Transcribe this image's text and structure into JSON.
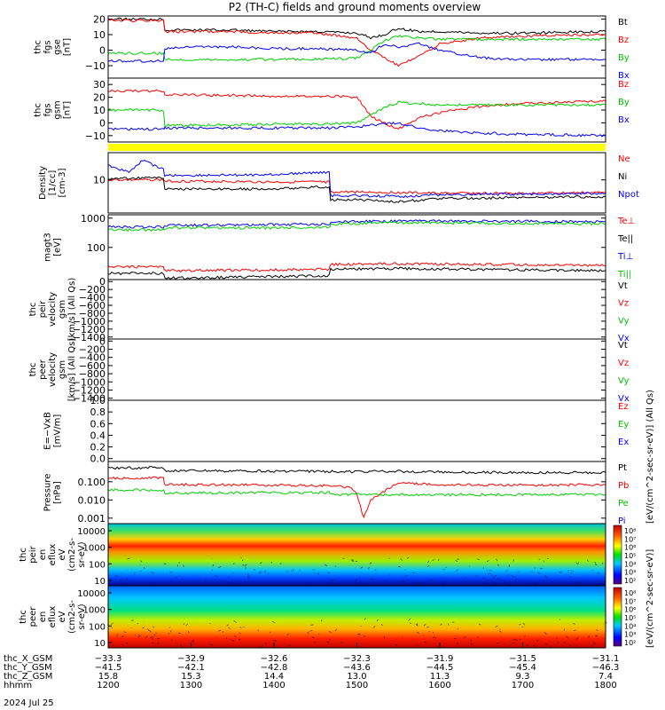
{
  "title": "P2 (TH-C) fields and ground moments overview",
  "chart_data": [
    {
      "id": "fgs_gse",
      "type": "line",
      "ylabel": [
        "thc",
        "fgs",
        "gse",
        "[nT]"
      ],
      "ylim": [
        -18,
        22
      ],
      "yticks": [
        "20",
        "10",
        "0",
        "−10"
      ],
      "ytick_values": [
        20,
        10,
        0,
        -10
      ],
      "legend": [
        "Bt",
        "Bz",
        "By",
        "Bx"
      ],
      "series": [
        {
          "name": "Bt",
          "color": "#000000",
          "times": [
            1200,
            1240,
            1241,
            1300,
            1330,
            1400,
            1430,
            1500,
            1510,
            1520,
            1530,
            1545,
            1600,
            1630,
            1700,
            1800
          ],
          "values": [
            20,
            20,
            13,
            13,
            13,
            12,
            12,
            11,
            8,
            10,
            14,
            12,
            12,
            11,
            11,
            12
          ]
        },
        {
          "name": "Bz",
          "color": "#ff0000",
          "times": [
            1200,
            1240,
            1241,
            1300,
            1330,
            1400,
            1430,
            1500,
            1510,
            1520,
            1530,
            1545,
            1600,
            1630,
            1700,
            1800
          ],
          "values": [
            19,
            19,
            12,
            12,
            12,
            11,
            11,
            8,
            0,
            -5,
            -10,
            -4,
            4,
            8,
            9,
            10
          ]
        },
        {
          "name": "By",
          "color": "#00d000",
          "times": [
            1200,
            1240,
            1241,
            1300,
            1330,
            1400,
            1430,
            1500,
            1510,
            1520,
            1530,
            1545,
            1600,
            1630,
            1700,
            1800
          ],
          "values": [
            -2,
            -2,
            -6,
            -6,
            -6,
            -6,
            -6,
            -5,
            0,
            6,
            9,
            8,
            7,
            7,
            7,
            7
          ]
        },
        {
          "name": "Bx",
          "color": "#0000ff",
          "times": [
            1200,
            1240,
            1241,
            1300,
            1330,
            1400,
            1430,
            1500,
            1510,
            1520,
            1530,
            1545,
            1600,
            1630,
            1700,
            1800
          ],
          "values": [
            -7,
            -7,
            1,
            2,
            2,
            1,
            1,
            0,
            -2,
            4,
            2,
            4,
            0,
            -5,
            -6,
            -6
          ]
        }
      ]
    },
    {
      "id": "fgs_gsm",
      "type": "line",
      "ylabel": [
        "thc",
        "fgs",
        "gsm",
        "[nT]"
      ],
      "ylim": [
        -15,
        35
      ],
      "yticks": [
        "30",
        "20",
        "10",
        "0",
        "−10"
      ],
      "ytick_values": [
        30,
        20,
        10,
        0,
        -10
      ],
      "legend": [
        "Bz",
        "By",
        "Bx"
      ],
      "series": [
        {
          "name": "Bz",
          "color": "#ff0000",
          "times": [
            1200,
            1240,
            1241,
            1300,
            1400,
            1440,
            1500,
            1510,
            1520,
            1530,
            1545,
            1600,
            1630,
            1700,
            1800
          ],
          "values": [
            25,
            25,
            22,
            22,
            21,
            21,
            20,
            5,
            0,
            -5,
            4,
            8,
            13,
            15,
            17
          ]
        },
        {
          "name": "By",
          "color": "#00d000",
          "times": [
            1200,
            1240,
            1241,
            1300,
            1400,
            1440,
            1500,
            1510,
            1520,
            1530,
            1545,
            1600,
            1630,
            1700,
            1800
          ],
          "values": [
            10,
            10,
            -2,
            -2,
            -1,
            -1,
            0,
            6,
            12,
            16,
            15,
            14,
            14,
            14,
            14
          ]
        },
        {
          "name": "Bx",
          "color": "#0000ff",
          "times": [
            1200,
            1240,
            1241,
            1300,
            1400,
            1440,
            1500,
            1510,
            1520,
            1530,
            1545,
            1600,
            1630,
            1700,
            1800
          ],
          "values": [
            -5,
            -5,
            -4,
            -4,
            -4,
            -4,
            -3,
            -2,
            -1,
            0,
            -4,
            -6,
            -8,
            -9,
            -10
          ]
        }
      ]
    },
    {
      "id": "density",
      "type": "line",
      "scale": "log",
      "ylabel": [
        "Density",
        "[1/cc]",
        "[cm-3]"
      ],
      "ylim": [
        0.8,
        80
      ],
      "yticks": [
        "10"
      ],
      "ytick_values": [
        10
      ],
      "legend": [
        "Ne",
        "Ni",
        "Npot"
      ],
      "series": [
        {
          "name": "Ne",
          "color": "#ff0000",
          "times": [
            1200,
            1240,
            1241,
            1300,
            1400,
            1440,
            1441,
            1500,
            1530,
            1600,
            1700,
            1800
          ],
          "values": [
            10,
            10,
            9,
            9,
            8.5,
            8.5,
            4,
            4,
            3.8,
            3.6,
            3.6,
            3.8
          ]
        },
        {
          "name": "Ni",
          "color": "#000000",
          "times": [
            1200,
            1240,
            1241,
            1300,
            1400,
            1440,
            1441,
            1500,
            1530,
            1600,
            1700,
            1800
          ],
          "values": [
            11,
            12,
            5,
            5,
            5,
            6,
            2.2,
            2.2,
            1.9,
            2.4,
            2.6,
            2.8
          ]
        },
        {
          "name": "Npot",
          "color": "#0000ff",
          "times": [
            1200,
            1215,
            1225,
            1240,
            1241,
            1300,
            1400,
            1440,
            1441,
            1500,
            1530,
            1600,
            1700,
            1800
          ],
          "values": [
            30,
            18,
            45,
            22,
            14,
            14,
            15,
            18,
            3,
            3,
            2.8,
            3.2,
            3.4,
            3.6
          ]
        }
      ]
    },
    {
      "id": "temperature",
      "type": "line",
      "scale": "log",
      "ylabel": [
        "magt3",
        "[eV]"
      ],
      "ylim": [
        8,
        1300
      ],
      "yticks": [
        "1000",
        "100"
      ],
      "ytick_values": [
        1000,
        100
      ],
      "legend": [
        "Te⊥",
        "Te||",
        "Ti⊥",
        "Ti||"
      ],
      "series": [
        {
          "name": "Te⊥",
          "color": "#ff0000",
          "times": [
            1200,
            1240,
            1241,
            1400,
            1440,
            1441,
            1530,
            1800
          ],
          "values": [
            22,
            22,
            16,
            17,
            18,
            26,
            28,
            24
          ]
        },
        {
          "name": "Te||",
          "color": "#000000",
          "times": [
            1200,
            1240,
            1241,
            1400,
            1440,
            1441,
            1530,
            1800
          ],
          "values": [
            13,
            13,
            9,
            10,
            11,
            18,
            19,
            16
          ]
        },
        {
          "name": "Ti⊥",
          "color": "#0000ff",
          "times": [
            1200,
            1240,
            1241,
            1400,
            1440,
            1441,
            1530,
            1800
          ],
          "values": [
            500,
            500,
            560,
            600,
            620,
            750,
            800,
            760
          ]
        },
        {
          "name": "Ti||",
          "color": "#00d000",
          "times": [
            1200,
            1240,
            1241,
            1400,
            1440,
            1441,
            1530,
            1800
          ],
          "values": [
            400,
            400,
            460,
            470,
            480,
            620,
            700,
            640
          ]
        }
      ]
    },
    {
      "id": "peir_velocity",
      "type": "line",
      "ylabel": [
        "thc",
        "peir",
        "velocity",
        "gsm",
        "[km/s] (All Qs)"
      ],
      "ylim": [
        -1450,
        50
      ],
      "yticks": [
        "0",
        "−200",
        "−400",
        "−600",
        "−800",
        "−1000",
        "−1200",
        "−1400"
      ],
      "ytick_values": [
        0,
        -200,
        -400,
        -600,
        -800,
        -1000,
        -1200,
        -1400
      ],
      "legend": [
        "Vt",
        "Vz",
        "Vy",
        "Vx"
      ],
      "series": []
    },
    {
      "id": "peer_velocity",
      "type": "line",
      "ylabel": [
        "thc",
        "peer",
        "velocity",
        "gsm",
        "[km/s] (All Qs)"
      ],
      "ylim": [
        -1450,
        50
      ],
      "yticks": [
        "0",
        "−200",
        "−400",
        "−600",
        "−800",
        "−1000",
        "−1200",
        "−1400"
      ],
      "ytick_values": [
        0,
        -200,
        -400,
        -600,
        -800,
        -1000,
        -1200,
        -1400
      ],
      "legend": [
        "Vt",
        "Vz",
        "Vy",
        "Vx"
      ],
      "series": []
    },
    {
      "id": "efield",
      "type": "line",
      "ylabel": [
        "E=−VxB",
        "[mV/m]"
      ],
      "ylim": [
        -0.05,
        1.0
      ],
      "yticks": [
        "1.0",
        "0.8",
        "0.6",
        "0.4",
        "0.2",
        "0.0"
      ],
      "ytick_values": [
        1.0,
        0.8,
        0.6,
        0.4,
        0.2,
        0.0
      ],
      "legend": [
        "Ez",
        "Ey",
        "Ex"
      ],
      "series": []
    },
    {
      "id": "pressure",
      "type": "line",
      "scale": "log",
      "ylabel": [
        "Pressure",
        "[nPa]"
      ],
      "ylim": [
        0.0005,
        1.3
      ],
      "yticks": [
        "0.100",
        "0.010",
        "0.001"
      ],
      "ytick_values": [
        0.1,
        0.01,
        0.001
      ],
      "legend": [
        "Pt",
        "Pb",
        "Pe",
        "Pi"
      ],
      "series": [
        {
          "name": "Pt",
          "color": "#000000",
          "times": [
            1200,
            1230,
            1240,
            1241,
            1300,
            1400,
            1500,
            1530,
            1600,
            1700,
            1800
          ],
          "values": [
            0.55,
            0.6,
            0.62,
            0.4,
            0.4,
            0.38,
            0.36,
            0.38,
            0.34,
            0.32,
            0.32
          ]
        },
        {
          "name": "Pb",
          "color": "#ff0000",
          "times": [
            1200,
            1240,
            1241,
            1300,
            1400,
            1440,
            1455,
            1500,
            1505,
            1510,
            1520,
            1530,
            1600,
            1700,
            1800
          ],
          "values": [
            0.16,
            0.16,
            0.07,
            0.07,
            0.065,
            0.06,
            0.05,
            0.02,
            0.001,
            0.01,
            0.03,
            0.09,
            0.07,
            0.065,
            0.07
          ]
        },
        {
          "name": "Pe",
          "color": "#00d000",
          "times": [
            1200,
            1240,
            1241,
            1300,
            1400,
            1440,
            1441,
            1500,
            1600,
            1700,
            1800
          ],
          "values": [
            0.035,
            0.035,
            0.024,
            0.024,
            0.025,
            0.026,
            0.02,
            0.02,
            0.019,
            0.02,
            0.02
          ]
        }
      ]
    },
    {
      "id": "peir_eflux",
      "type": "heatmap",
      "ylabel": [
        "thc",
        "peir",
        "en",
        "eflux",
        "eV",
        "(cm2-s-",
        "sr-eV)"
      ],
      "yticks": [
        "10000",
        "1000",
        "100",
        "10"
      ],
      "colorbar_label": "[eV/(cm^2-sec-sr-eV)] (All Qs)",
      "colorbar_ticks": [
        "10⁸",
        "10⁷",
        "10⁶",
        "10⁵",
        "10⁴",
        "10³",
        "10²"
      ]
    },
    {
      "id": "peer_eflux",
      "type": "heatmap",
      "ylabel": [
        "thc",
        "peer",
        "en",
        "eflux",
        "eV",
        "(cm2-s-",
        "sr-eV)"
      ],
      "yticks": [
        "10000",
        "1000",
        "100",
        "10"
      ],
      "colorbar_label": "[eV/(cm^2-sec-sr-eV)]",
      "colorbar_ticks": [
        "10⁸",
        "10⁷",
        "10⁶",
        "10⁵",
        "10⁴",
        "10³",
        "10²"
      ]
    }
  ],
  "xaxis": {
    "range": [
      1200,
      1800
    ],
    "rows": [
      {
        "label": "thc_X_GSM",
        "values": [
          "−33.3",
          "−32.9",
          "−32.6",
          "−32.3",
          "−31.9",
          "−31.5",
          "−31.1"
        ]
      },
      {
        "label": "thc_Y_GSM",
        "values": [
          "−41.5",
          "−42.1",
          "−42.8",
          "−43.6",
          "−44.5",
          "−45.4",
          "−46.3"
        ]
      },
      {
        "label": "thc_Z_GSM",
        "values": [
          "15.8",
          "15.3",
          "14.4",
          "13.0",
          "11.3",
          "9.3",
          "7.4"
        ]
      },
      {
        "label": "hhmm",
        "values": [
          "1200",
          "1300",
          "1400",
          "1500",
          "1600",
          "1700",
          "1800"
        ]
      }
    ],
    "date": "2024 Jul 25"
  }
}
